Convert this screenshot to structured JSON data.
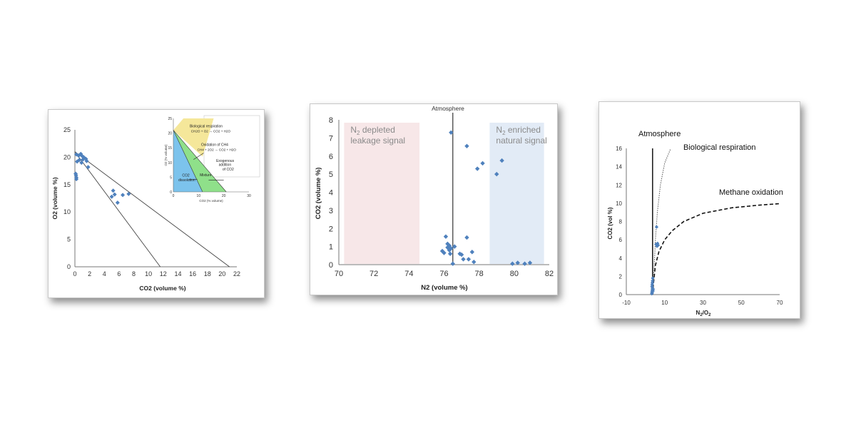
{
  "chart_data": [
    {
      "type": "scatter",
      "xlabel": "CO2 (volume %)",
      "ylabel": "O2 (volume %)",
      "xlim": [
        0,
        22
      ],
      "ylim": [
        0,
        25
      ],
      "xticks": [
        0,
        2,
        4,
        6,
        8,
        10,
        12,
        14,
        16,
        18,
        20,
        22
      ],
      "yticks": [
        0,
        5,
        10,
        15,
        20,
        25
      ],
      "grid": false,
      "points": [
        [
          0.2,
          20.5
        ],
        [
          0.5,
          20.3
        ],
        [
          0.8,
          20.6
        ],
        [
          1.0,
          20.2
        ],
        [
          1.2,
          20.0
        ],
        [
          1.5,
          19.7
        ],
        [
          0.6,
          19.5
        ],
        [
          0.9,
          19.0
        ],
        [
          0.3,
          19.2
        ],
        [
          1.1,
          19.6
        ],
        [
          1.6,
          19.3
        ],
        [
          1.8,
          18.2
        ],
        [
          0.1,
          17.0
        ],
        [
          0.15,
          16.7
        ],
        [
          0.2,
          16.3
        ],
        [
          0.2,
          16.0
        ],
        [
          5.2,
          13.9
        ],
        [
          5.4,
          13.2
        ],
        [
          5.8,
          11.7
        ],
        [
          6.5,
          13.1
        ],
        [
          7.3,
          13.3
        ],
        [
          5.0,
          12.8
        ]
      ],
      "lines": [
        {
          "from": [
            0,
            21
          ],
          "to": [
            11.6,
            0
          ]
        },
        {
          "from": [
            0,
            21
          ],
          "to": [
            21,
            0
          ]
        }
      ],
      "inset": {
        "xlabel": "CO2 (% volume)",
        "ylabel": "O2 (% volume)",
        "xlim": [
          0,
          30
        ],
        "ylim": [
          0,
          25
        ],
        "xticks": [
          0,
          10,
          20,
          30
        ],
        "yticks": [
          0,
          5,
          10,
          15,
          20,
          25
        ],
        "annotations": {
          "bio_title": "Biological respiration",
          "bio_eq": "CH2O + O2 → CO2 + H2O",
          "ox_title": "Oxidation of CH4",
          "ox_eq": "CH4 + 2O2 → CO2 + H2O",
          "exo1": "Exogenous",
          "exo2": "addition",
          "exo3": "of CO2",
          "mixture": "Mixture",
          "diss1": "CO2",
          "diss2": "dissolution"
        },
        "colors": {
          "respiration": "#f5e79a",
          "oxidation": "#8fe08a",
          "dissolution": "#7cc3ec"
        }
      }
    },
    {
      "type": "scatter",
      "title": "Atmosphere",
      "xlabel": "N2 (volume %)",
      "ylabel": "CO2 (volume %)",
      "xlim": [
        70,
        82
      ],
      "ylim": [
        0,
        8
      ],
      "xticks": [
        70,
        72,
        74,
        76,
        78,
        80,
        82
      ],
      "yticks": [
        0,
        1,
        2,
        3,
        4,
        5,
        6,
        7,
        8
      ],
      "atmosphere_x": 76.5,
      "regions": [
        {
          "label_line1": "N2 depleted",
          "label_line2": "leakage signal",
          "x0": 70.3,
          "x1": 74.6,
          "color": "#f7e7e8"
        },
        {
          "label_line1": "N2 enriched",
          "label_line2": "natural signal",
          "x0": 78.6,
          "x1": 81.7,
          "color": "#e2ebf6"
        }
      ],
      "points": [
        [
          76.4,
          7.3
        ],
        [
          77.3,
          6.55
        ],
        [
          77.9,
          5.3
        ],
        [
          78.2,
          5.6
        ],
        [
          79.0,
          5.0
        ],
        [
          79.3,
          5.75
        ],
        [
          75.9,
          0.75
        ],
        [
          76.0,
          0.65
        ],
        [
          76.1,
          1.55
        ],
        [
          76.2,
          1.15
        ],
        [
          76.2,
          0.95
        ],
        [
          76.3,
          0.8
        ],
        [
          76.35,
          0.6
        ],
        [
          76.4,
          0.9
        ],
        [
          76.5,
          0.05
        ],
        [
          76.6,
          1.0
        ],
        [
          76.9,
          0.6
        ],
        [
          77.0,
          0.55
        ],
        [
          77.1,
          0.3
        ],
        [
          77.3,
          1.5
        ],
        [
          77.4,
          0.3
        ],
        [
          77.6,
          0.7
        ],
        [
          77.7,
          0.15
        ],
        [
          76.3,
          1.05
        ],
        [
          79.9,
          0.05
        ],
        [
          80.2,
          0.1
        ],
        [
          80.6,
          0.05
        ],
        [
          80.9,
          0.1
        ]
      ]
    },
    {
      "type": "scatter",
      "xlabel": "N2/O2",
      "ylabel": "CO2 (vol %)",
      "xlim": [
        -10,
        70
      ],
      "ylim": [
        0,
        16
      ],
      "xticks": [
        -10,
        10,
        30,
        50,
        70
      ],
      "yticks": [
        0,
        2,
        4,
        6,
        8,
        10,
        12,
        14,
        16
      ],
      "atmosphere_label": "Atmosphere",
      "bio_label": "Biological respiration",
      "methane_label": "Methane oxidation",
      "atmosphere_x": 3.7,
      "points": [
        [
          3.3,
          0.1
        ],
        [
          3.4,
          0.3
        ],
        [
          3.5,
          0.5
        ],
        [
          3.6,
          0.7
        ],
        [
          3.4,
          0.9
        ],
        [
          3.5,
          1.1
        ],
        [
          3.6,
          1.3
        ],
        [
          3.7,
          1.5
        ],
        [
          3.8,
          1.8
        ],
        [
          3.5,
          0.2
        ],
        [
          3.9,
          0.4
        ],
        [
          4.0,
          0.6
        ],
        [
          5.5,
          5.5
        ],
        [
          6.0,
          5.3
        ],
        [
          6.3,
          5.6
        ],
        [
          6.6,
          5.4
        ],
        [
          5.8,
          7.4
        ]
      ],
      "bio_curve": [
        [
          3.7,
          0.03
        ],
        [
          4,
          1
        ],
        [
          4.5,
          3
        ],
        [
          5.2,
          6
        ],
        [
          6.2,
          9
        ],
        [
          7.8,
          12
        ],
        [
          10,
          14.4
        ],
        [
          13,
          15.9
        ]
      ],
      "methane_curve": [
        [
          3.7,
          0.03
        ],
        [
          4.2,
          1.3
        ],
        [
          5.2,
          3.2
        ],
        [
          7,
          4.7
        ],
        [
          10,
          6
        ],
        [
          14,
          7
        ],
        [
          20,
          8
        ],
        [
          30,
          8.9
        ],
        [
          45,
          9.5
        ],
        [
          60,
          9.8
        ],
        [
          70,
          9.95
        ]
      ]
    }
  ]
}
